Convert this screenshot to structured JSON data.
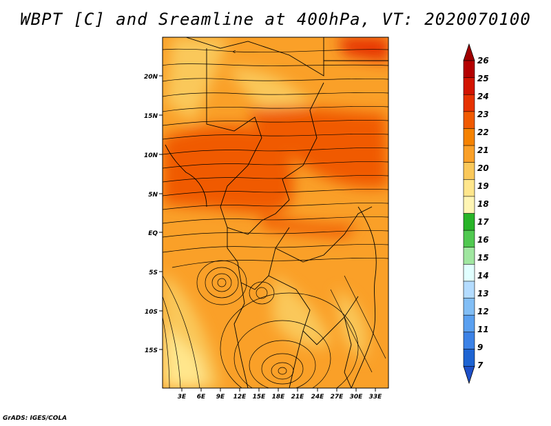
{
  "title": "WBPT [C] and Sreamline at 400hPa, VT: 2020070100",
  "credit": "GrADS: IGES/COLA",
  "map": {
    "lat_labels": [
      "20N",
      "15N",
      "10N",
      "5N",
      "EQ",
      "5S",
      "10S",
      "15S"
    ],
    "lon_labels": [
      "3E",
      "6E",
      "9E",
      "12E",
      "15E",
      "18E",
      "21E",
      "24E",
      "27E",
      "30E",
      "33E"
    ],
    "lat_range": [
      -20,
      25
    ],
    "lon_range": [
      0,
      35
    ]
  },
  "colorbar": {
    "labels": [
      "26",
      "25",
      "24",
      "23",
      "22",
      "21",
      "20",
      "19",
      "18",
      "17",
      "16",
      "15",
      "14",
      "13",
      "12",
      "11",
      "9",
      "7"
    ],
    "colors": [
      "#b40000",
      "#d21400",
      "#e63200",
      "#f05a00",
      "#f58200",
      "#faa028",
      "#fac85a",
      "#ffe68c",
      "#fff5b4",
      "#28b428",
      "#50c850",
      "#a0e6a0",
      "#e1ffff",
      "#b4dcff",
      "#82bef5",
      "#5aa0f0",
      "#3c82e6",
      "#1e64d2"
    ],
    "top_cap_color": "#a00000",
    "bottom_cap_color": "#1e50c8"
  }
}
